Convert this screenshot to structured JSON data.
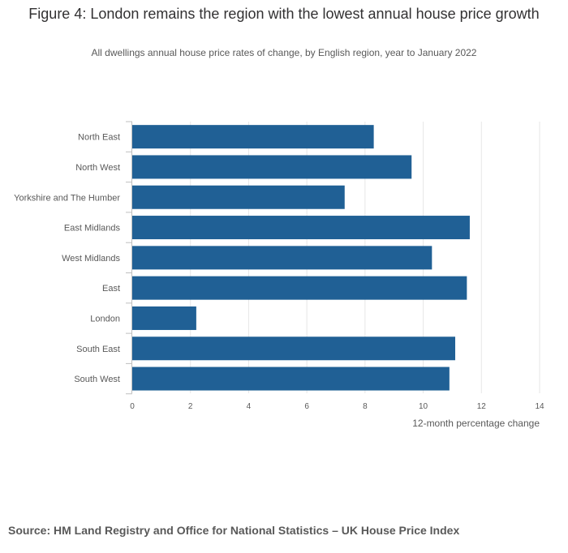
{
  "title": "Figure 4: London remains the region with the lowest annual house price growth",
  "subtitle": "All dwellings annual house price rates of change, by English region, year to January 2022",
  "source": "Source: HM Land Registry and Office for National Statistics – UK House Price Index",
  "colors": {
    "bar": "#206095",
    "grid": "#e6e6e6",
    "axis": "#bfbfbf",
    "text": "#595959"
  },
  "chart_data": {
    "type": "bar",
    "orientation": "horizontal",
    "categories": [
      "North East",
      "North West",
      "Yorkshire and The Humber",
      "East Midlands",
      "West Midlands",
      "East",
      "London",
      "South East",
      "South West"
    ],
    "values": [
      8.3,
      9.6,
      7.3,
      11.6,
      10.3,
      11.5,
      2.2,
      11.1,
      10.9
    ],
    "xlabel": "12-month percentage change",
    "ylabel": "",
    "xlim": [
      0,
      14
    ],
    "xticks": [
      0,
      2,
      4,
      6,
      8,
      10,
      12,
      14
    ],
    "grid": true
  }
}
